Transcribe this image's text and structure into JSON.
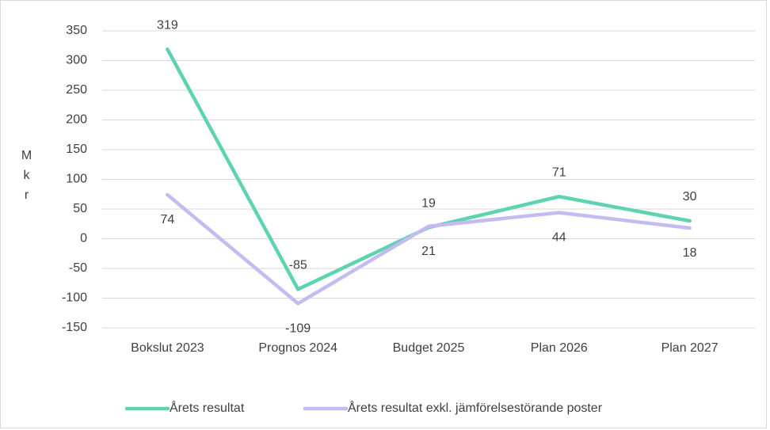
{
  "chart_data": {
    "type": "line",
    "y_label": "Mkr",
    "categories": [
      "Bokslut 2023",
      "Prognos 2024",
      "Budget 2025",
      "Plan 2026",
      "Plan 2027"
    ],
    "series": [
      {
        "name": "Årets resultat",
        "color": "#5dd3b1",
        "values": [
          319,
          -85,
          19,
          71,
          30
        ]
      },
      {
        "name": "Årets resultat exkl. jämförelsestörande poster",
        "color": "#c6bbf0",
        "values": [
          74,
          -109,
          21,
          44,
          18
        ]
      }
    ],
    "ylim": [
      -150,
      350
    ],
    "yticks": [
      -150,
      -100,
      -50,
      0,
      50,
      100,
      150,
      200,
      250,
      300,
      350
    ],
    "grid": true,
    "legend": "bottom"
  }
}
